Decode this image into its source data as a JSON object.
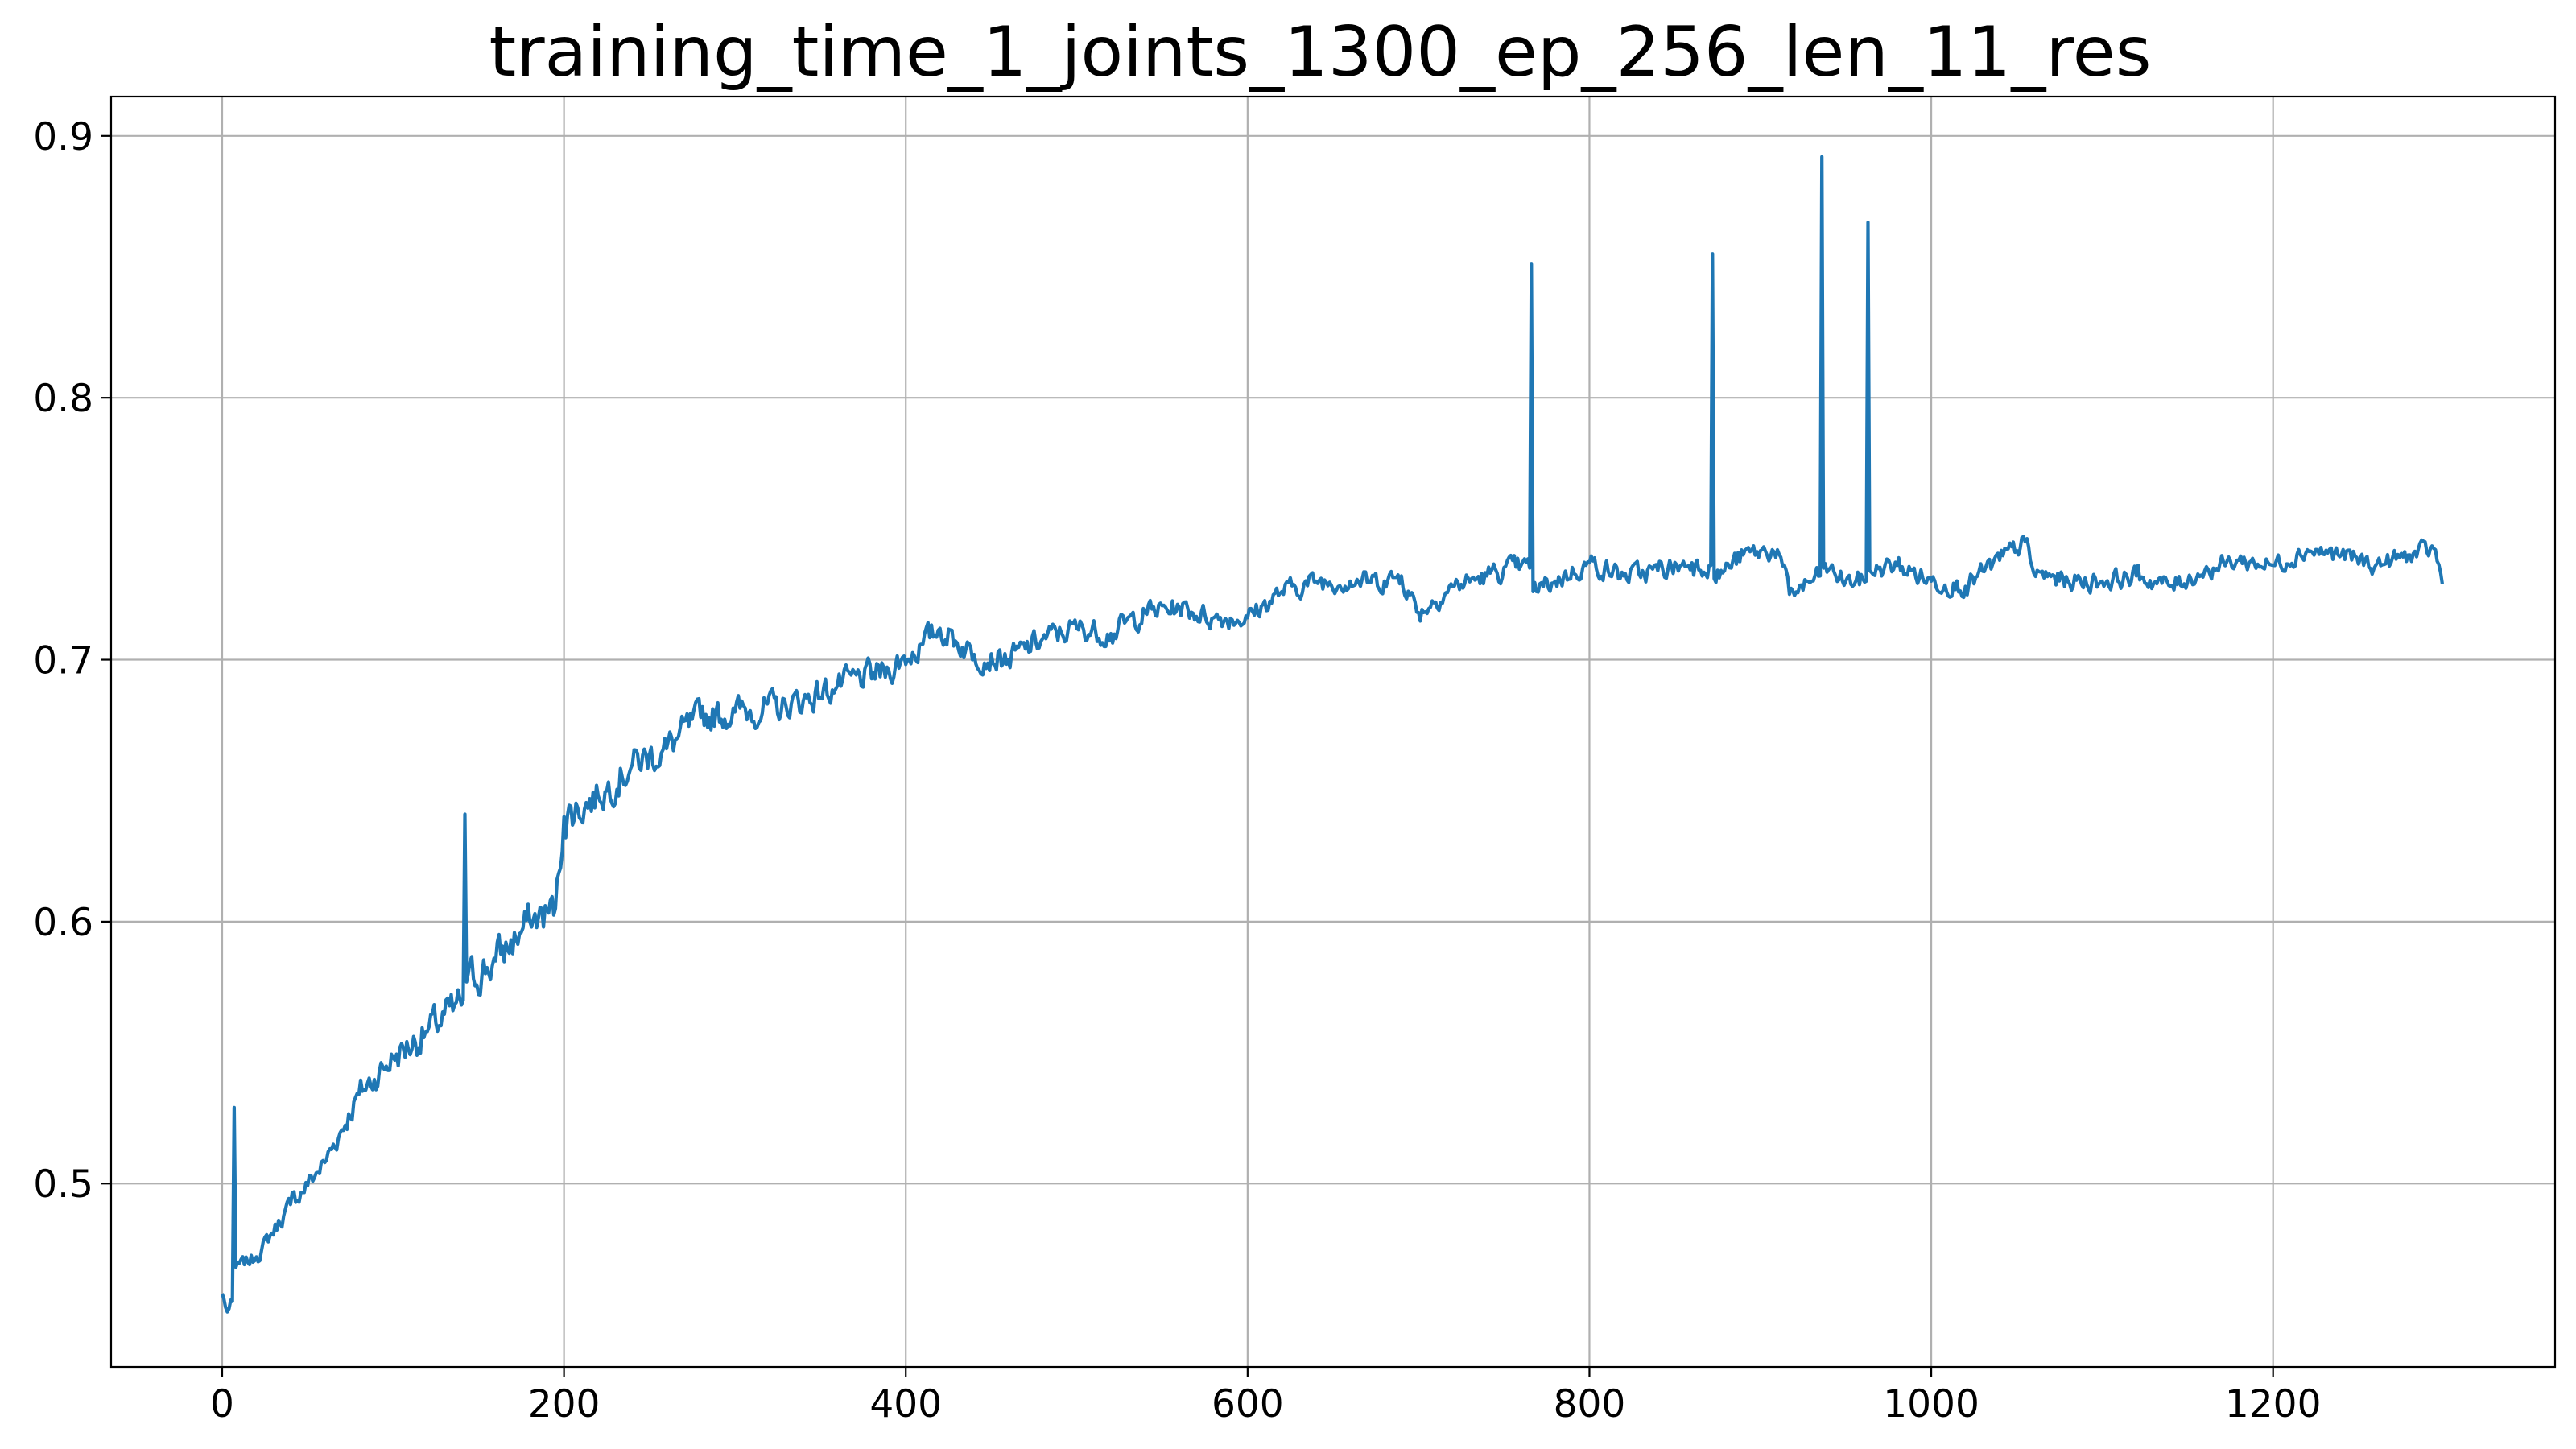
{
  "chart_data": {
    "type": "line",
    "title": "training_time_1_joints_1300_ep_256_len_11_res",
    "xlabel": "",
    "ylabel": "",
    "xlim": [
      -65,
      1365
    ],
    "ylim": [
      0.43,
      0.915
    ],
    "grid": true,
    "xticks": [
      0,
      200,
      400,
      600,
      800,
      1000,
      1200
    ],
    "xtick_labels": [
      "0",
      "200",
      "400",
      "600",
      "800",
      "1000",
      "1200"
    ],
    "yticks": [
      0.5,
      0.6,
      0.7,
      0.8,
      0.9
    ],
    "ytick_labels": [
      "0.5",
      "0.6",
      "0.7",
      "0.8",
      "0.9"
    ],
    "series": [
      {
        "color": "#1f77b4",
        "anchors": [
          [
            0,
            0.458
          ],
          [
            3,
            0.451
          ],
          [
            6,
            0.455
          ],
          [
            7,
            0.529
          ],
          [
            8,
            0.468
          ],
          [
            20,
            0.472
          ],
          [
            40,
            0.492
          ],
          [
            60,
            0.508
          ],
          [
            80,
            0.534
          ],
          [
            100,
            0.548
          ],
          [
            120,
            0.558
          ],
          [
            135,
            0.566
          ],
          [
            141,
            0.57
          ],
          [
            142,
            0.641
          ],
          [
            143,
            0.577
          ],
          [
            160,
            0.585
          ],
          [
            180,
            0.6
          ],
          [
            195,
            0.605
          ],
          [
            200,
            0.64
          ],
          [
            220,
            0.648
          ],
          [
            240,
            0.66
          ],
          [
            260,
            0.666
          ],
          [
            280,
            0.678
          ],
          [
            300,
            0.68
          ],
          [
            330,
            0.682
          ],
          [
            360,
            0.69
          ],
          [
            390,
            0.696
          ],
          [
            410,
            0.706
          ],
          [
            420,
            0.712
          ],
          [
            440,
            0.702
          ],
          [
            460,
            0.7
          ],
          [
            480,
            0.708
          ],
          [
            500,
            0.712
          ],
          [
            520,
            0.71
          ],
          [
            540,
            0.718
          ],
          [
            560,
            0.72
          ],
          [
            580,
            0.716
          ],
          [
            600,
            0.716
          ],
          [
            620,
            0.726
          ],
          [
            640,
            0.73
          ],
          [
            660,
            0.73
          ],
          [
            680,
            0.73
          ],
          [
            690,
            0.732
          ],
          [
            700,
            0.718
          ],
          [
            720,
            0.728
          ],
          [
            740,
            0.732
          ],
          [
            760,
            0.736
          ],
          [
            765,
            0.735
          ],
          [
            766,
            0.851
          ],
          [
            767,
            0.726
          ],
          [
            780,
            0.73
          ],
          [
            800,
            0.737
          ],
          [
            820,
            0.732
          ],
          [
            840,
            0.734
          ],
          [
            860,
            0.737
          ],
          [
            871,
            0.736
          ],
          [
            872,
            0.855
          ],
          [
            873,
            0.731
          ],
          [
            890,
            0.74
          ],
          [
            910,
            0.742
          ],
          [
            917,
            0.725
          ],
          [
            930,
            0.73
          ],
          [
            935,
            0.732
          ],
          [
            936,
            0.892
          ],
          [
            937,
            0.735
          ],
          [
            950,
            0.73
          ],
          [
            962,
            0.73
          ],
          [
            963,
            0.867
          ],
          [
            964,
            0.734
          ],
          [
            980,
            0.736
          ],
          [
            1000,
            0.73
          ],
          [
            1020,
            0.728
          ],
          [
            1040,
            0.738
          ],
          [
            1055,
            0.745
          ],
          [
            1060,
            0.733
          ],
          [
            1080,
            0.73
          ],
          [
            1100,
            0.73
          ],
          [
            1120,
            0.732
          ],
          [
            1140,
            0.728
          ],
          [
            1160,
            0.734
          ],
          [
            1180,
            0.738
          ],
          [
            1200,
            0.736
          ],
          [
            1220,
            0.742
          ],
          [
            1240,
            0.74
          ],
          [
            1260,
            0.736
          ],
          [
            1280,
            0.74
          ],
          [
            1295,
            0.742
          ],
          [
            1299,
            0.729
          ]
        ],
        "noise_amplitude": [
          [
            0,
            0.002
          ],
          [
            150,
            0.008
          ],
          [
            300,
            0.006
          ],
          [
            600,
            0.004
          ],
          [
            800,
            0.004
          ],
          [
            1300,
            0.0035
          ]
        ]
      }
    ]
  }
}
